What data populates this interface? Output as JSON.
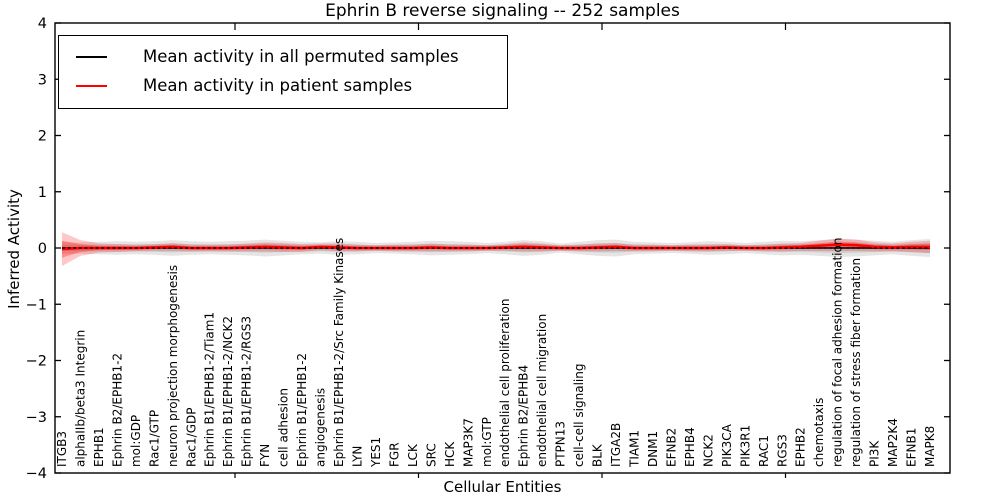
{
  "chart_data": {
    "type": "line",
    "title": "Ephrin B reverse signaling -- 252 samples",
    "xlabel": "Cellular Entities",
    "ylabel": "Inferred Activity",
    "ylim": [
      -4,
      4
    ],
    "y_tick_labels": [
      "4",
      "3",
      "2",
      "1",
      "0",
      "−1",
      "−2",
      "−3",
      "−4"
    ],
    "grid": false,
    "legend_position": "upper left",
    "categories": [
      "ITGB3",
      "alphaIIb/beta3 Integrin",
      "EPHB1",
      "Ephrin B2/EPHB1-2",
      "mol:GDP",
      "Rac1/GTP",
      "neuron projection morphogenesis",
      "Rac1/GDP",
      "Ephrin B1/EPHB1-2/Tiam1",
      "Ephrin B1/EPHB1-2/NCK2",
      "Ephrin B1/EPHB1-2/RGS3",
      "FYN",
      "cell adhesion",
      "Ephrin B1/EPHB1-2",
      "angiogenesis",
      "Ephrin B1/EPHB1-2/Src Family Kinases",
      "LYN",
      "YES1",
      "FGR",
      "LCK",
      "SRC",
      "HCK",
      "MAP3K7",
      "mol:GTP",
      "endothelial cell proliferation",
      "Ephrin B2/EPHB4",
      "endothelial cell migration",
      "PTPN13",
      "cell-cell signaling",
      "BLK",
      "ITGA2B",
      "TIAM1",
      "DNM1",
      "EFNB2",
      "EPHB4",
      "NCK2",
      "PIK3CA",
      "PIK3R1",
      "RAC1",
      "RGS3",
      "EPHB2",
      "chemotaxis",
      "regulation of focal adhesion formation",
      "regulation of stress fiber formation",
      "PI3K",
      "MAP2K4",
      "EFNB1",
      "MAPK8"
    ],
    "series": [
      {
        "name": "Mean activity in all permuted samples",
        "color": "#000000",
        "band_color": "#888888",
        "values": [
          0,
          0,
          0,
          0,
          0,
          0,
          0,
          0,
          0,
          0,
          0,
          0,
          0,
          0,
          0,
          0,
          0,
          0,
          0,
          0,
          0,
          0,
          0,
          0,
          0,
          0,
          0,
          0,
          0,
          0,
          0,
          0,
          0,
          0,
          0,
          0,
          0,
          0,
          0,
          0,
          0,
          0,
          0,
          0,
          0,
          0,
          0,
          0
        ],
        "band_halfwidth": [
          0.1,
          0.1,
          0.11,
          0.12,
          0.11,
          0.12,
          0.14,
          0.12,
          0.11,
          0.12,
          0.13,
          0.15,
          0.13,
          0.11,
          0.1,
          0.12,
          0.11,
          0.09,
          0.1,
          0.11,
          0.13,
          0.12,
          0.11,
          0.09,
          0.11,
          0.14,
          0.12,
          0.08,
          0.11,
          0.14,
          0.15,
          0.11,
          0.1,
          0.09,
          0.1,
          0.12,
          0.11,
          0.09,
          0.11,
          0.13,
          0.12,
          0.14,
          0.16,
          0.15,
          0.13,
          0.11,
          0.14,
          0.16
        ]
      },
      {
        "name": "Mean activity in patient samples",
        "color": "#ff0000",
        "band_color": "#ff0000",
        "values": [
          -0.02,
          0,
          0,
          0,
          0,
          0.01,
          0.02,
          0,
          0,
          0,
          0.01,
          0.02,
          0.01,
          0,
          0.02,
          0.01,
          0,
          0,
          0,
          0,
          0.01,
          0,
          0,
          0,
          0.01,
          0.02,
          0.01,
          0,
          0,
          0.01,
          0.02,
          0,
          0,
          0,
          0,
          0,
          0.01,
          0,
          0,
          0.01,
          0.02,
          0.04,
          0.06,
          0.05,
          0.02,
          0.01,
          0.02,
          0.02
        ],
        "band_halfwidth": [
          0.3,
          0.14,
          0.08,
          0.07,
          0.06,
          0.06,
          0.07,
          0.06,
          0.06,
          0.06,
          0.07,
          0.08,
          0.08,
          0.07,
          0.06,
          0.07,
          0.06,
          0.05,
          0.06,
          0.06,
          0.07,
          0.06,
          0.06,
          0.05,
          0.06,
          0.08,
          0.07,
          0.05,
          0.06,
          0.07,
          0.07,
          0.06,
          0.06,
          0.05,
          0.06,
          0.06,
          0.06,
          0.05,
          0.06,
          0.07,
          0.07,
          0.09,
          0.11,
          0.1,
          0.08,
          0.07,
          0.09,
          0.11
        ]
      }
    ]
  }
}
